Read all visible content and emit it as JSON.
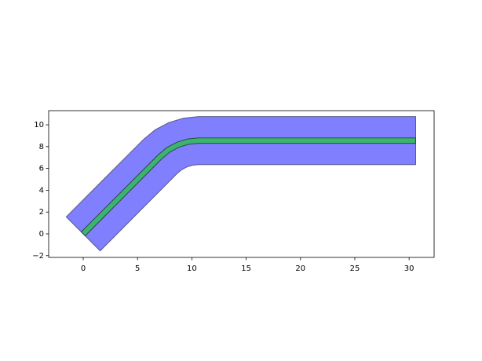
{
  "chart_data": {
    "type": "polygon",
    "xlim": [
      -3.18,
      32.3
    ],
    "ylim": [
      -2.16,
      11.3
    ],
    "xticks": [
      0,
      5,
      10,
      15,
      20,
      25,
      30
    ],
    "yticks": [
      {
        "value": -2,
        "label": "−2"
      },
      0,
      2,
      4,
      6,
      8,
      10
    ],
    "series": [
      {
        "color": "#8080ff",
        "edgecolor": "#55558c",
        "x": [
          -1.56,
          5.53,
          6.62,
          7.86,
          9.22,
          10.62,
          30.6,
          30.6,
          10.62,
          10.07,
          9.55,
          9.06,
          8.64,
          1.56
        ],
        "values": [
          1.56,
          8.64,
          9.54,
          10.2,
          10.61,
          10.75,
          10.75,
          6.35,
          6.35,
          6.3,
          6.14,
          5.88,
          5.53,
          -1.56
        ]
      },
      {
        "color": "#3cb371",
        "edgecolor": "#2a4a40",
        "x": [
          -0.18,
          6.91,
          7.7,
          8.61,
          9.6,
          10.62,
          30.6,
          30.6,
          10.62,
          9.69,
          8.8,
          7.98,
          7.26,
          0.18
        ],
        "values": [
          0.18,
          7.26,
          7.92,
          8.4,
          8.7,
          8.8,
          8.8,
          8.3,
          8.3,
          8.21,
          7.94,
          7.5,
          6.91,
          -0.18
        ]
      }
    ]
  }
}
